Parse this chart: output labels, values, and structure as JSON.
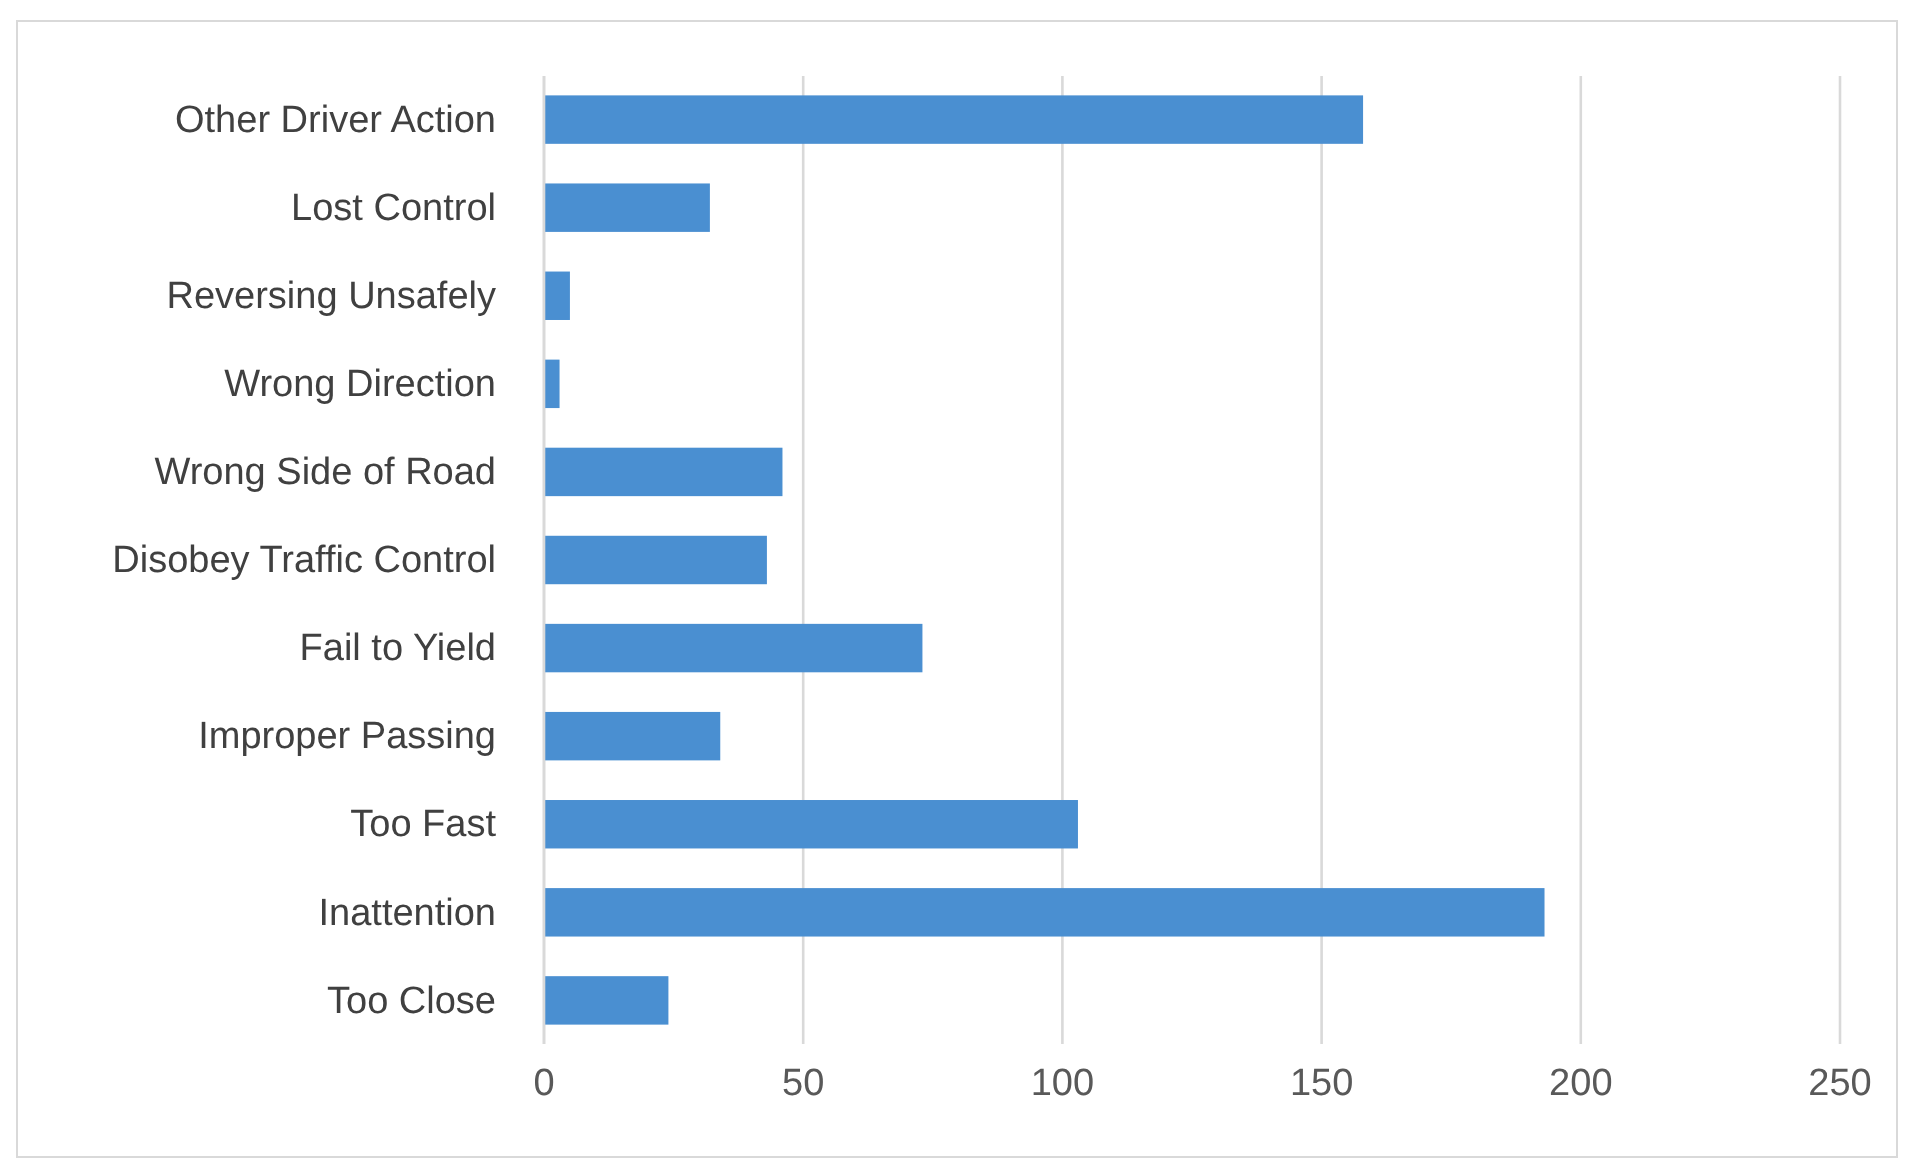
{
  "chart_data": {
    "type": "bar",
    "orientation": "horizontal",
    "categories": [
      "Other Driver Action",
      "Lost Control",
      "Reversing Unsafely",
      "Wrong Direction",
      "Wrong Side of Road",
      "Disobey Traffic Control",
      "Fail to Yield",
      "Improper Passing",
      "Too Fast",
      "Inattention",
      "Too Close"
    ],
    "values": [
      158,
      32,
      5,
      3,
      46,
      43,
      73,
      34,
      103,
      193,
      24
    ],
    "color": "#4a8fd1",
    "xlim": [
      0,
      250
    ],
    "xticks": [
      0,
      50,
      100,
      150,
      200,
      250
    ],
    "grid": "x"
  }
}
